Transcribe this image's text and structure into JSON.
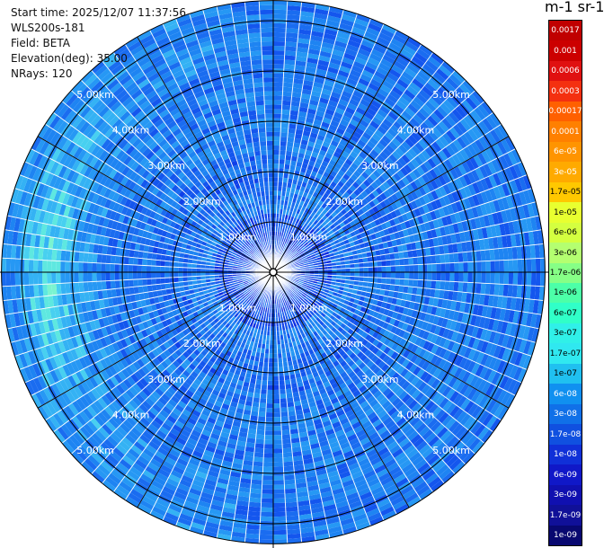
{
  "header": {
    "start_time": "Start time: 2025/12/07 11:37:56",
    "instrument": "WLS200s-181",
    "field": "Field: BETA",
    "elevation": "Elevation(deg): 35.00",
    "nrays": "NRays: 120"
  },
  "colorbar": {
    "title": "m-1 sr-1",
    "levels": [
      "0.0017",
      "0.001",
      "0.0006",
      "0.0003",
      "0.00017",
      "0.0001",
      "6e-05",
      "3e-05",
      "1.7e-05",
      "1e-05",
      "6e-06",
      "3e-06",
      "1.7e-06",
      "1e-06",
      "6e-07",
      "3e-07",
      "1.7e-07",
      "1e-07",
      "6e-08",
      "3e-08",
      "1.7e-08",
      "1e-08",
      "6e-09",
      "3e-09",
      "1.7e-09",
      "1e-09"
    ],
    "colors": [
      "#c00000",
      "#cc0000",
      "#e01010",
      "#f43010",
      "#ff6000",
      "#ff8000",
      "#ff9400",
      "#ffaa00",
      "#ffc800",
      "#e8ff30",
      "#d4ff40",
      "#b4ff70",
      "#86ff86",
      "#4cffa8",
      "#30ffc8",
      "#30f0e8",
      "#30e8f0",
      "#20c0f0",
      "#1090f0",
      "#1070e8",
      "#1050e0",
      "#1030d8",
      "#1018c8",
      "#1010b0",
      "#101098",
      "#080870"
    ],
    "label_colors": [
      "white",
      "white",
      "white",
      "white",
      "white",
      "white",
      "white",
      "white",
      "black",
      "black",
      "black",
      "black",
      "black",
      "black",
      "black",
      "black",
      "black",
      "black",
      "white",
      "white",
      "white",
      "white",
      "white",
      "white",
      "white",
      "white"
    ]
  },
  "chart_data": {
    "type": "heatmap",
    "projection": "polar PPI",
    "nrays": 120,
    "range_km_max": 5.4,
    "range_rings_km": [
      1,
      2,
      3,
      4,
      5
    ],
    "ring_labels": [
      "1.00km",
      "2.00km",
      "3.00km",
      "4.00km",
      "5.00km"
    ],
    "field": "BETA",
    "typical_value": "3e-08",
    "value_range": [
      "1e-09",
      "1.7e-07"
    ],
    "enhanced_region": "west, 3.5-5 km, ~1e-07"
  }
}
